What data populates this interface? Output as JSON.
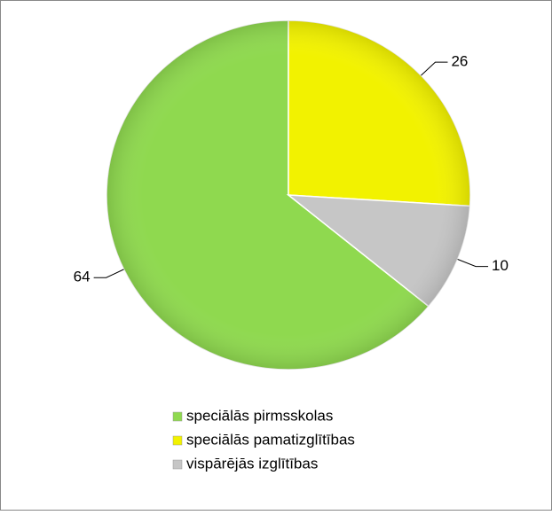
{
  "chart_data": {
    "type": "pie",
    "categories": [
      "speciālās pirmsskolas",
      "speciālās pamatizglītības",
      "vispārējās izglītības"
    ],
    "values": [
      64,
      26,
      10
    ],
    "colors": [
      "#8fd94f",
      "#f2f200",
      "#c6c6c6"
    ],
    "legend": "bottom"
  }
}
